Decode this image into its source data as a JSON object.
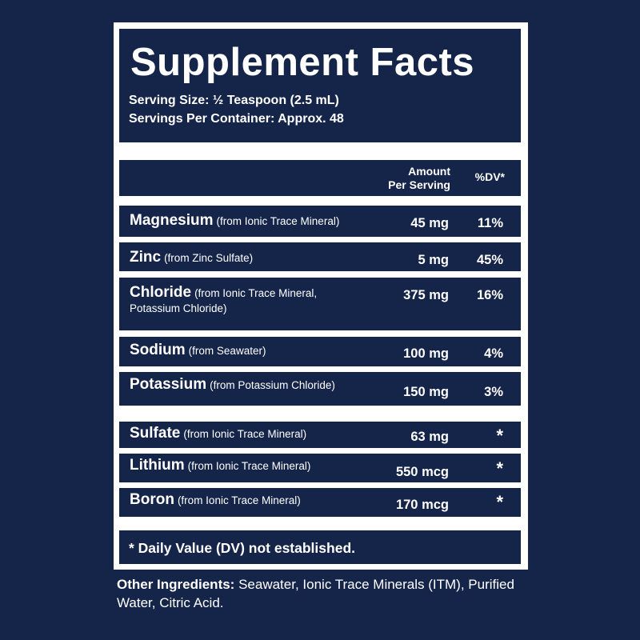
{
  "header": {
    "title": "Supplement Facts",
    "serving_size": "Serving Size: ½ Teaspoon (2.5 mL)",
    "servings_per_container": "Servings Per Container: Approx. 48"
  },
  "columns": {
    "amount_line1": "Amount",
    "amount_line2": "Per Serving",
    "dv": "%DV*"
  },
  "nutrients": [
    {
      "name": "Magnesium",
      "source": "(from Ionic Trace Mineral)",
      "amount": "45 mg",
      "dv": "11%"
    },
    {
      "name": "Zinc",
      "source": "(from Zinc Sulfate)",
      "amount": "5 mg",
      "dv": "45%"
    },
    {
      "name": "Chloride",
      "source": "(from Ionic Trace Mineral,",
      "source_line2": "Potassium Chloride)",
      "amount": "375 mg",
      "dv": "16%"
    },
    {
      "name": "Sodium",
      "source": "(from Seawater)",
      "amount": "100 mg",
      "dv": "4%"
    },
    {
      "name": "Potassium",
      "source": "(from Potassium Chloride)",
      "amount": "150 mg",
      "dv": "3%"
    },
    {
      "name": "Sulfate",
      "source": "(from Ionic Trace Mineral)",
      "amount": "63 mg",
      "dv": "*"
    },
    {
      "name": "Lithium",
      "source": "(from Ionic Trace Mineral)",
      "amount": "550 mcg",
      "dv": "*"
    },
    {
      "name": "Boron",
      "source": "(from Ionic Trace Mineral)",
      "amount": "170 mcg",
      "dv": "*"
    }
  ],
  "footnote": "* Daily Value (DV) not established.",
  "other_ingredients": {
    "label": "Other Ingredients:",
    "text": " Seawater, Ionic Trace Minerals (ITM), Purified Water, Citric Acid."
  },
  "colors": {
    "background": "#152449",
    "panel": "#ffffff",
    "text": "#ffffff"
  }
}
